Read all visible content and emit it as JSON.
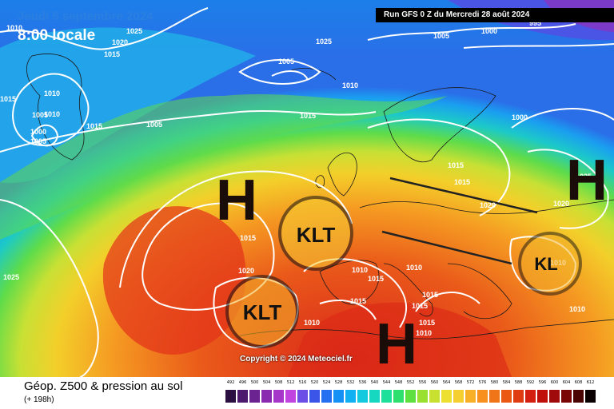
{
  "header": {
    "date_title": "Jeudi 5 septembre 2024",
    "time_title": "8:00 locale",
    "run_info": "Run GFS 0 Z du Mercredi 28 août 2024"
  },
  "map": {
    "copyright": "Copyright © 2024 Meteociel.fr",
    "high_symbol": "H",
    "low_symbol": "KLT",
    "low_symbol_partial": "KL",
    "isobar_labels": [
      "1010",
      "1025",
      "1020",
      "1015",
      "1010",
      "1015",
      "1000",
      "1005",
      "1005",
      "1010",
      "1015",
      "1005",
      "1010",
      "1015",
      "1005",
      "1000",
      "995",
      "1005",
      "1015",
      "1025",
      "1020",
      "1015",
      "1025",
      "1020",
      "1010",
      "1015",
      "1010",
      "1015",
      "1015",
      "1015",
      "1015",
      "1010",
      "1010",
      "1010",
      "1015",
      "1020",
      "1010",
      "1000",
      "1025"
    ],
    "colors": {
      "text_blue": "#2b7fe0",
      "isobar": "#ffffff",
      "annotation": "#111111"
    }
  },
  "footer": {
    "product_name": "Géop. Z500 & pression au sol",
    "lead_time": "(+ 198h)"
  },
  "legend": {
    "levels": [
      "492",
      "496",
      "500",
      "504",
      "508",
      "512",
      "516",
      "520",
      "524",
      "528",
      "532",
      "536",
      "540",
      "544",
      "548",
      "552",
      "556",
      "560",
      "564",
      "568",
      "572",
      "576",
      "580",
      "584",
      "588",
      "592",
      "596",
      "600",
      "604",
      "608",
      "612"
    ],
    "colors": [
      "#2a0f40",
      "#4d1a6e",
      "#6a2390",
      "#8a2ab0",
      "#a635c9",
      "#c044df",
      "#6b4ee6",
      "#3b55e8",
      "#2470f0",
      "#1590f5",
      "#10b0f2",
      "#12c9e0",
      "#16d8c0",
      "#1ee09a",
      "#2ee06e",
      "#5ee040",
      "#9ae030",
      "#c8e030",
      "#eee030",
      "#f5cf30",
      "#f8b028",
      "#f89020",
      "#f07418",
      "#ea5814",
      "#e03c12",
      "#d42010",
      "#c0100c",
      "#a00a0a",
      "#7a0606",
      "#4a0404",
      "#0a0202"
    ]
  }
}
